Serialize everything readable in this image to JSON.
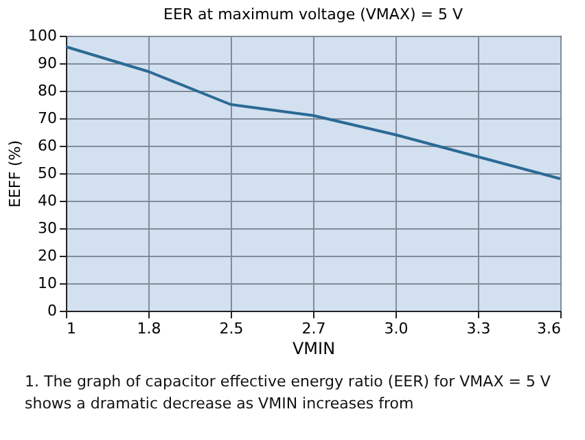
{
  "chart_data": {
    "type": "line",
    "title": "EER at maximum voltage (VMAX) = 5 V",
    "xlabel": "VMIN",
    "ylabel": "EEFF (%)",
    "categories": [
      "1",
      "1.8",
      "2.5",
      "2.7",
      "3.0",
      "3.3",
      "3.6"
    ],
    "series": [
      {
        "color": "#2b6a94",
        "values": [
          96,
          87,
          75,
          71,
          64,
          56,
          48
        ]
      }
    ],
    "ylim": [
      0,
      100
    ],
    "yticks": [
      0,
      10,
      20,
      30,
      40,
      50,
      60,
      70,
      80,
      90,
      100
    ],
    "grid": true,
    "marker": "none",
    "line_style": "solid",
    "annotations": [
      "1. The graph of capacitor effective energy ratio (EER) for VMAX = 5 V",
      "shows a dramatic decrease as VMIN increases from"
    ]
  }
}
